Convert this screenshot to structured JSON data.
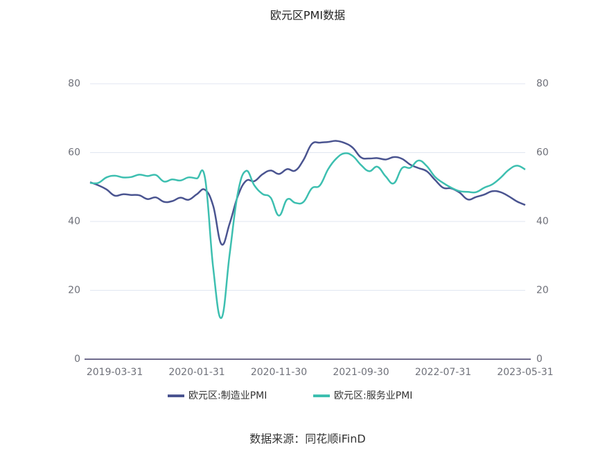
{
  "chart_data": {
    "type": "line",
    "title": "欧元区PMI数据",
    "categories": [
      null,
      null,
      null,
      "2019-03-31",
      null,
      null,
      null,
      null,
      null,
      null,
      null,
      null,
      null,
      "2020-01-31",
      null,
      null,
      null,
      null,
      null,
      null,
      null,
      null,
      null,
      "2020-11-30",
      null,
      null,
      null,
      null,
      null,
      null,
      null,
      null,
      null,
      "2021-09-30",
      null,
      null,
      null,
      null,
      null,
      null,
      null,
      null,
      null,
      "2022-07-31",
      null,
      null,
      null,
      null,
      null,
      null,
      null,
      null,
      null,
      "2023-05-31"
    ],
    "series": [
      {
        "name": "欧元区:制造业PMI",
        "color": "#4a5490",
        "values": [
          51.4,
          50.5,
          49.3,
          47.5,
          47.9,
          47.7,
          47.6,
          46.5,
          47.0,
          45.7,
          45.9,
          46.9,
          46.3,
          47.9,
          49.2,
          44.5,
          33.4,
          39.4,
          47.4,
          51.8,
          51.7,
          53.7,
          54.8,
          53.8,
          55.2,
          54.8,
          57.9,
          62.5,
          62.9,
          63.1,
          63.4,
          62.8,
          61.4,
          58.6,
          58.3,
          58.4,
          58.0,
          58.7,
          58.2,
          56.5,
          55.5,
          54.6,
          52.1,
          49.8,
          49.6,
          48.4,
          46.4,
          47.1,
          47.8,
          48.8,
          48.5,
          47.3,
          45.8,
          44.8
        ]
      },
      {
        "name": "欧元区:服务业PMI",
        "color": "#3dbfb0",
        "axis": "y2",
        "values": [
          51.2,
          51.2,
          52.8,
          53.3,
          52.8,
          52.9,
          53.6,
          53.2,
          53.5,
          51.6,
          52.2,
          51.9,
          52.8,
          52.5,
          52.6,
          26.4,
          12.0,
          30.5,
          48.3,
          54.7,
          50.5,
          48.0,
          46.9,
          41.7,
          46.4,
          45.4,
          45.7,
          49.6,
          50.5,
          55.2,
          58.3,
          59.8,
          59.0,
          56.4,
          54.6,
          55.9,
          53.1,
          51.1,
          55.5,
          55.6,
          57.7,
          56.1,
          53.0,
          51.2,
          49.8,
          48.8,
          48.6,
          48.5,
          49.8,
          50.8,
          52.7,
          55.0,
          56.2,
          55.1
        ]
      }
    ],
    "ylim": [
      0,
      80
    ],
    "yticks": [
      0,
      20,
      40,
      60,
      80
    ],
    "y2lim": [
      0,
      80
    ],
    "y2ticks": [
      0,
      20,
      40,
      60,
      80
    ],
    "grid": true,
    "legend": "bottom",
    "source": "数据来源：同花顺iFinD"
  }
}
